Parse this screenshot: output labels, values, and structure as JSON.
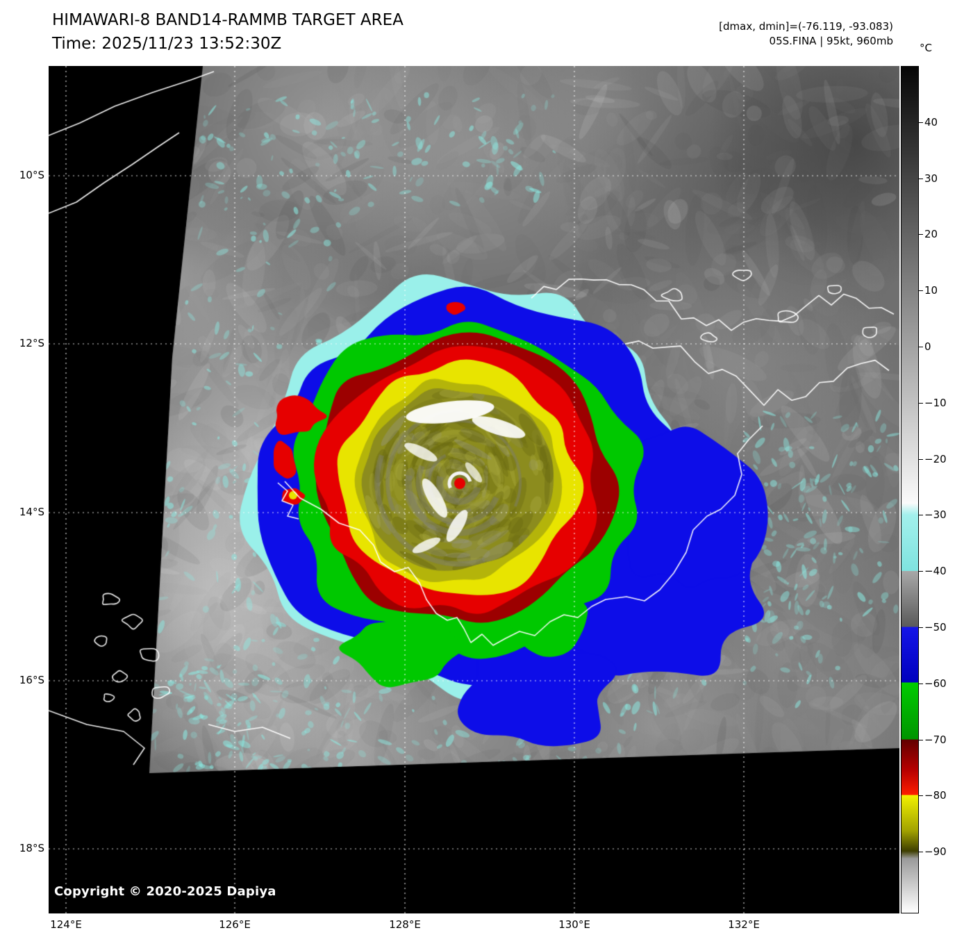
{
  "header": {
    "title": "HIMAWARI-8 BAND14-RAMMB TARGET AREA",
    "time_label": "Time: 2025/11/23 13:52:30Z",
    "dmax_dmin": "[dmax, dmin]=(-76.119, -93.083)",
    "storm_info": "05S.FINA | 95kt, 960mb"
  },
  "map": {
    "copyright": "Copyright © 2020-2025 Dapiya",
    "lat_labels": [
      "10°S",
      "12°S",
      "14°S",
      "16°S",
      "18°S"
    ],
    "lon_labels": [
      "124°E",
      "126°E",
      "128°E",
      "130°E",
      "132°E"
    ]
  },
  "colorbar": {
    "unit": "°C",
    "tick_labels": [
      "40",
      "30",
      "20",
      "10",
      "0",
      "−10",
      "−20",
      "−30",
      "−40",
      "−50",
      "−60",
      "−70",
      "−80",
      "−90"
    ],
    "segments": [
      {
        "range": "40 to -30",
        "style": "grayscale black to white"
      },
      {
        "range": "-30 to -40",
        "color": "#a2f0ec"
      },
      {
        "range": "-40 to -50",
        "style": "gray gradient"
      },
      {
        "range": "-50 to -60",
        "color": "#1515e8"
      },
      {
        "range": "-60 to -70",
        "color": "#00cc00"
      },
      {
        "range": "-70 to -80",
        "color": "#cc0000",
        "style": "dark red to red"
      },
      {
        "range": "-80 to -90",
        "color": "#f2f200",
        "style": "yellow to olive"
      },
      {
        "range": "below -90",
        "style": "gray to white"
      }
    ]
  },
  "enhancement_colors": {
    "cyan": "#9af0ea",
    "blue": "#0d0de8",
    "green": "#00c800",
    "dark_red": "#9c0000",
    "red": "#e60000",
    "yellow": "#e8e400",
    "olive": "#8c8c1e"
  }
}
